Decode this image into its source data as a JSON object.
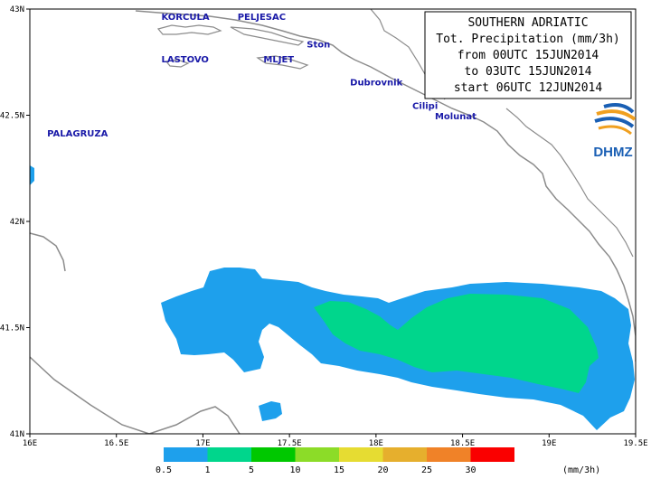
{
  "title_box": {
    "line1": "SOUTHERN   ADRIATIC",
    "line2": "Tot. Precipitation (mm/3h)",
    "line3": "from 00UTC 15JUN2014",
    "line4": "to 03UTC 15JUN2014",
    "line5": "start 06UTC 12JUN2014"
  },
  "logo": {
    "text": "DHMZ",
    "icon": "dhmz-swirl-logo"
  },
  "place_labels": [
    {
      "name": "KORCULA",
      "lon": 16.76,
      "lat": 42.95
    },
    {
      "name": "PELJESAC",
      "lon": 17.2,
      "lat": 42.95
    },
    {
      "name": "Ston",
      "lon": 17.6,
      "lat": 42.82
    },
    {
      "name": "LASTOVO",
      "lon": 16.76,
      "lat": 42.75
    },
    {
      "name": "MLJET",
      "lon": 17.35,
      "lat": 42.75
    },
    {
      "name": "Dubrovnik",
      "lon": 17.85,
      "lat": 42.64
    },
    {
      "name": "Cilipi",
      "lon": 18.21,
      "lat": 42.53
    },
    {
      "name": "Molunat",
      "lon": 18.34,
      "lat": 42.48
    },
    {
      "name": "PALAGRUZA",
      "lon": 16.1,
      "lat": 42.4
    }
  ],
  "axes": {
    "lon_ticks": [
      "16E",
      "16.5E",
      "17E",
      "17.5E",
      "18E",
      "18.5E",
      "19E",
      "19.5E"
    ],
    "lon_values": [
      16.0,
      16.5,
      17.0,
      17.5,
      18.0,
      18.5,
      19.0,
      19.5
    ],
    "lat_ticks": [
      "41N",
      "41.5N",
      "42N",
      "42.5N",
      "43N"
    ],
    "lat_values": [
      41.0,
      41.5,
      42.0,
      42.5,
      43.0
    ]
  },
  "colorbar": {
    "levels": [
      "0.5",
      "1",
      "5",
      "10",
      "15",
      "20",
      "25",
      "30"
    ],
    "colors": [
      "#1ea0ec",
      "#00d68c",
      "#00c800",
      "#8cdc28",
      "#e6dc32",
      "#e6af2d",
      "#f08228",
      "#fa0000"
    ],
    "unit": "(mm/3h)"
  },
  "colors": {
    "coast": "#8c8c8c",
    "precip_low": "#1ea0ec",
    "precip_mid": "#00d68c",
    "label": "#1a1aa8"
  }
}
